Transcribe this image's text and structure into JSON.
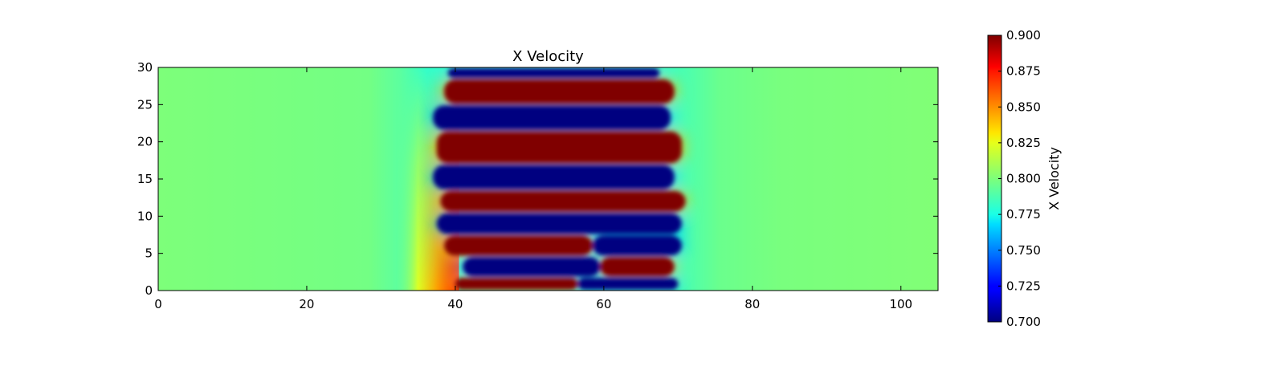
{
  "chart_data": {
    "type": "heatmap",
    "title": "X Velocity",
    "xlabel": "",
    "ylabel": "",
    "xlim": [
      0,
      105
    ],
    "ylim": [
      0,
      30
    ],
    "x_ticks": [
      "0",
      "20",
      "40",
      "60",
      "80",
      "100"
    ],
    "y_ticks": [
      "0",
      "5",
      "10",
      "15",
      "20",
      "25",
      "30"
    ],
    "x_tick_values": [
      0,
      20,
      40,
      60,
      80,
      100
    ],
    "y_tick_values": [
      0,
      5,
      10,
      15,
      20,
      25,
      30
    ],
    "background_value": 0.79,
    "colorbar": {
      "label": "X Velocity",
      "range": [
        0.7,
        0.9
      ],
      "colormap": "jet",
      "ticks": [
        "0.700",
        "0.725",
        "0.750",
        "0.775",
        "0.800",
        "0.825",
        "0.850",
        "0.875",
        "0.900"
      ],
      "tick_values": [
        0.7,
        0.725,
        0.75,
        0.775,
        0.8,
        0.825,
        0.85,
        0.875,
        0.9
      ]
    },
    "bands": [
      {
        "value": 0.9,
        "y_bottom": 0.0,
        "y_top": 1.8,
        "x_start": 40.0,
        "x_end": 56.5
      },
      {
        "value": 0.7,
        "y_bottom": 0.0,
        "y_top": 1.8,
        "x_start": 56.5,
        "x_end": 70.0
      },
      {
        "value": 0.7,
        "y_bottom": 1.8,
        "y_top": 4.6,
        "x_start": 41.0,
        "x_end": 59.5
      },
      {
        "value": 0.9,
        "y_bottom": 1.8,
        "y_top": 4.6,
        "x_start": 59.5,
        "x_end": 69.5
      },
      {
        "value": 0.9,
        "y_bottom": 4.6,
        "y_top": 7.5,
        "x_start": 38.5,
        "x_end": 58.5
      },
      {
        "value": 0.7,
        "y_bottom": 4.6,
        "y_top": 7.5,
        "x_start": 58.5,
        "x_end": 70.5
      },
      {
        "value": 0.7,
        "y_bottom": 7.5,
        "y_top": 10.5,
        "x_start": 37.5,
        "x_end": 70.5
      },
      {
        "value": 0.9,
        "y_bottom": 10.5,
        "y_top": 13.5,
        "x_start": 38.0,
        "x_end": 71.0
      },
      {
        "value": 0.7,
        "y_bottom": 13.5,
        "y_top": 17.0,
        "x_start": 37.0,
        "x_end": 69.5
      },
      {
        "value": 0.9,
        "y_bottom": 17.0,
        "y_top": 21.5,
        "x_start": 37.5,
        "x_end": 70.5
      },
      {
        "value": 0.7,
        "y_bottom": 21.5,
        "y_top": 25.0,
        "x_start": 37.0,
        "x_end": 69.0
      },
      {
        "value": 0.9,
        "y_bottom": 25.0,
        "y_top": 28.5,
        "x_start": 38.5,
        "x_end": 69.5
      },
      {
        "value": 0.7,
        "y_bottom": 28.5,
        "y_top": 30.0,
        "x_start": 39.0,
        "x_end": 67.5
      }
    ],
    "left_shoulder": {
      "x_center": 36.0,
      "y_max_value": 0.86,
      "description_value_top": 0.8
    },
    "grid": false
  }
}
